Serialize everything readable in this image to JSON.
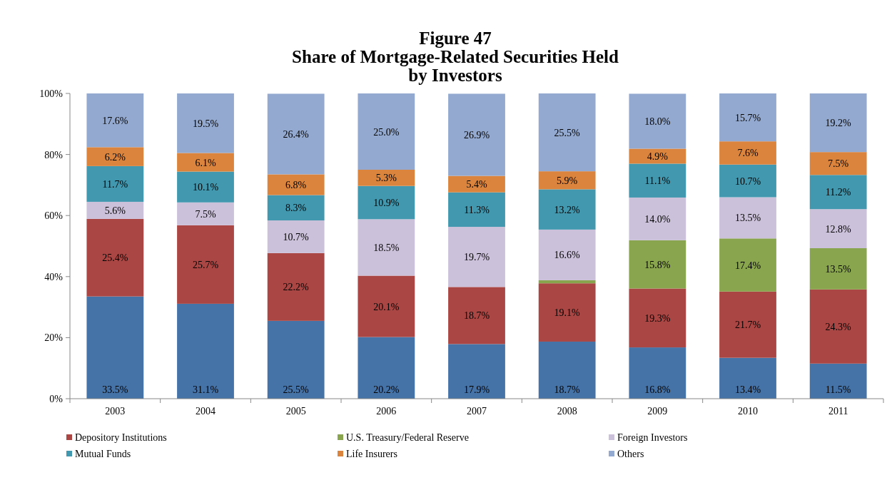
{
  "chart_data": {
    "type": "bar",
    "title": "Figure 47\nShare of Mortgage-Related Securities Held\nby Investors",
    "stacked": true,
    "categories": [
      "2003",
      "2004",
      "2005",
      "2006",
      "2007",
      "2008",
      "2009",
      "2010",
      "2011"
    ],
    "ylim": [
      0,
      100
    ],
    "yticks": [
      {
        "value": 0,
        "label": "0%"
      },
      {
        "value": 20,
        "label": "20%"
      },
      {
        "value": 40,
        "label": "40%"
      },
      {
        "value": 60,
        "label": "60%"
      },
      {
        "value": 80,
        "label": "80%"
      },
      {
        "value": 100,
        "label": "100%"
      }
    ],
    "grid": false,
    "legend": "bottom",
    "series": [
      {
        "color": "#4572a7",
        "values": [
          33.5,
          31.1,
          25.5,
          20.2,
          17.9,
          18.7,
          16.8,
          13.4,
          11.5
        ],
        "value_labels": [
          "33.5%",
          "31.1%",
          "25.5%",
          "20.2%",
          "17.9%",
          "18.7%",
          "16.8%",
          "13.4%",
          "11.5%"
        ]
      },
      {
        "name": "Depository Institutions",
        "color": "#aa4643",
        "values": [
          25.4,
          25.7,
          22.2,
          20.1,
          18.7,
          19.1,
          19.3,
          21.7,
          24.3
        ],
        "value_labels": [
          "25.4%",
          "25.7%",
          "22.2%",
          "20.1%",
          "18.7%",
          "19.1%",
          "19.3%",
          "21.7%",
          "24.3%"
        ]
      },
      {
        "name": "U.S. Treasury/Federal  Reserve",
        "color": "#89a54e",
        "values": [
          null,
          null,
          null,
          null,
          null,
          1.0,
          15.8,
          17.4,
          13.5
        ],
        "value_labels": [
          null,
          null,
          null,
          null,
          null,
          null,
          "15.8%",
          "17.4%",
          "13.5%"
        ]
      },
      {
        "name": "Foreign Investors",
        "color": "#ccc1da",
        "values": [
          5.6,
          7.5,
          10.7,
          18.5,
          19.7,
          16.6,
          14.0,
          13.5,
          12.8
        ],
        "value_labels": [
          "5.6%",
          "7.5%",
          "10.7%",
          "18.5%",
          "19.7%",
          "16.6%",
          "14.0%",
          "13.5%",
          "12.8%"
        ]
      },
      {
        "name": "Mutual Funds",
        "color": "#4198af",
        "values": [
          11.7,
          10.1,
          8.3,
          10.9,
          11.3,
          13.2,
          11.1,
          10.7,
          11.2
        ],
        "value_labels": [
          "11.7%",
          "10.1%",
          "8.3%",
          "10.9%",
          "11.3%",
          "13.2%",
          "11.1%",
          "10.7%",
          "11.2%"
        ]
      },
      {
        "name": "Life Insurers",
        "color": "#db843d",
        "values": [
          6.2,
          6.1,
          6.8,
          5.3,
          5.4,
          5.9,
          4.9,
          7.6,
          7.5
        ],
        "value_labels": [
          "6.2%",
          "6.1%",
          "6.8%",
          "5.3%",
          "5.4%",
          "5.9%",
          "4.9%",
          "7.6%",
          "7.5%"
        ]
      },
      {
        "name": "Others",
        "color": "#93a9cf",
        "values": [
          17.6,
          19.5,
          26.4,
          25.0,
          26.9,
          25.5,
          18.0,
          15.7,
          19.2
        ],
        "value_labels": [
          "17.6%",
          "19.5%",
          "26.4%",
          "25.0%",
          "26.9%",
          "25.5%",
          "18.0%",
          "15.7%",
          "19.2%"
        ]
      }
    ]
  }
}
